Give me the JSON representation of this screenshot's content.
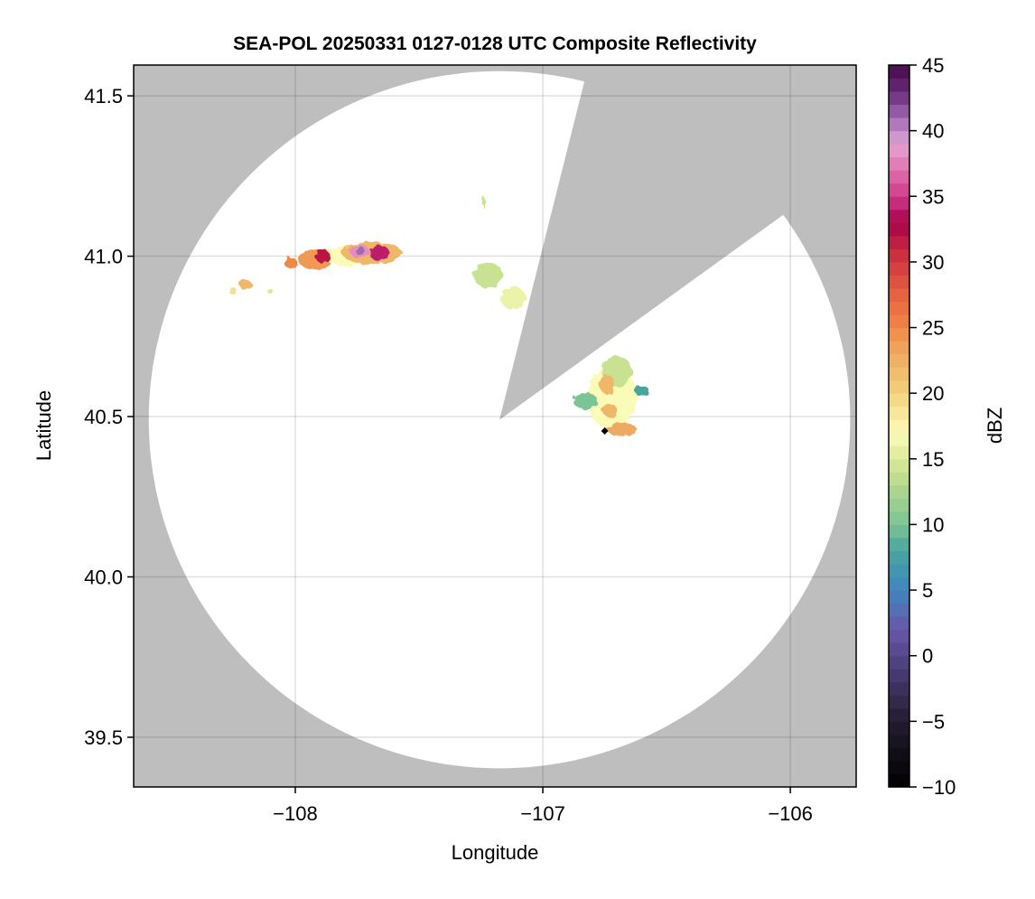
{
  "chart_data": {
    "type": "heatmap",
    "title": "SEA-POL 20250331 0127-0128 UTC Composite Reflectivity",
    "xlabel": "Longitude",
    "ylabel": "Latitude",
    "xlim": [
      -108.653,
      -105.734
    ],
    "ylim": [
      39.345,
      41.596
    ],
    "xticks": [
      -108,
      -107,
      -106
    ],
    "xtick_labels": [
      "−108",
      "−107",
      "−106"
    ],
    "yticks": [
      39.5,
      40.0,
      40.5,
      41.0,
      41.5
    ],
    "ytick_labels": [
      "39.5",
      "40.0",
      "40.5",
      "41.0",
      "41.5"
    ],
    "grid": true,
    "background_color": "#bebebe",
    "radar": {
      "lon": -107.175,
      "lat": 40.49,
      "range_lon_deg": 1.417,
      "range_lat_deg": 1.087,
      "blocked_sector_azimuth_deg": [
        14,
        54
      ]
    },
    "site_marker": {
      "lon": -106.75,
      "lat": 40.455,
      "symbol": "diamond",
      "color": "#000000"
    },
    "colorbar": {
      "label": "dBZ",
      "range": [
        -10,
        45
      ],
      "step": 1,
      "ticks": [
        -10,
        -5,
        0,
        5,
        10,
        15,
        20,
        25,
        30,
        35,
        40,
        45
      ],
      "tick_labels": [
        "−10",
        "−5",
        "0",
        "5",
        "10",
        "15",
        "20",
        "25",
        "30",
        "35",
        "40",
        "45"
      ],
      "color_stops": [
        [
          -10,
          "#000000"
        ],
        [
          -5,
          "#231c30"
        ],
        [
          0,
          "#54468a"
        ],
        [
          2,
          "#6a56a8"
        ],
        [
          5,
          "#3f86c0"
        ],
        [
          8,
          "#47a59e"
        ],
        [
          10,
          "#7cc495"
        ],
        [
          13,
          "#b4d88c"
        ],
        [
          15,
          "#dbea98"
        ],
        [
          17,
          "#fbfbb8"
        ],
        [
          20,
          "#f2d27c"
        ],
        [
          23,
          "#eeaa60"
        ],
        [
          25,
          "#f08848"
        ],
        [
          28,
          "#e55a40"
        ],
        [
          31,
          "#c7283f"
        ],
        [
          33,
          "#a8004a"
        ],
        [
          35,
          "#d03a8a"
        ],
        [
          38,
          "#e58cc0"
        ],
        [
          39,
          "#e2a4d4"
        ],
        [
          41,
          "#9f6ab4"
        ],
        [
          43,
          "#6a2a78"
        ],
        [
          45,
          "#460a4a"
        ]
      ]
    },
    "echo_cells": [
      {
        "lon": -107.92,
        "lat": 40.99,
        "rlon": 0.07,
        "rlat": 0.03,
        "dbz": 24
      },
      {
        "lon": -107.8,
        "lat": 41.0,
        "rlon": 0.08,
        "rlat": 0.03,
        "dbz": 17
      },
      {
        "lon": -107.89,
        "lat": 41.0,
        "rlon": 0.03,
        "rlat": 0.02,
        "dbz": 32
      },
      {
        "lon": -107.69,
        "lat": 41.01,
        "rlon": 0.12,
        "rlat": 0.035,
        "dbz": 22
      },
      {
        "lon": -107.74,
        "lat": 41.015,
        "rlon": 0.04,
        "rlat": 0.02,
        "dbz": 38
      },
      {
        "lon": -107.74,
        "lat": 41.018,
        "rlon": 0.02,
        "rlat": 0.012,
        "dbz": 41
      },
      {
        "lon": -107.66,
        "lat": 41.01,
        "rlon": 0.04,
        "rlat": 0.025,
        "dbz": 34
      },
      {
        "lon": -108.02,
        "lat": 40.98,
        "rlon": 0.025,
        "rlat": 0.018,
        "dbz": 25
      },
      {
        "lon": -108.2,
        "lat": 40.91,
        "rlon": 0.025,
        "rlat": 0.015,
        "dbz": 22
      },
      {
        "lon": -108.25,
        "lat": 40.89,
        "rlon": 0.015,
        "rlat": 0.012,
        "dbz": 19
      },
      {
        "lon": -108.1,
        "lat": 40.89,
        "rlon": 0.01,
        "rlat": 0.008,
        "dbz": 15
      },
      {
        "lon": -107.24,
        "lat": 41.17,
        "rlon": 0.006,
        "rlat": 0.018,
        "dbz": 14
      },
      {
        "lon": -107.22,
        "lat": 40.94,
        "rlon": 0.06,
        "rlat": 0.04,
        "dbz": 14
      },
      {
        "lon": -107.12,
        "lat": 40.87,
        "rlon": 0.05,
        "rlat": 0.035,
        "dbz": 16
      },
      {
        "lon": -106.72,
        "lat": 40.56,
        "rlon": 0.1,
        "rlat": 0.1,
        "dbz": 17
      },
      {
        "lon": -106.7,
        "lat": 40.64,
        "rlon": 0.06,
        "rlat": 0.05,
        "dbz": 14
      },
      {
        "lon": -106.83,
        "lat": 40.55,
        "rlon": 0.05,
        "rlat": 0.025,
        "dbz": 10
      },
      {
        "lon": -106.6,
        "lat": 40.58,
        "rlon": 0.03,
        "rlat": 0.015,
        "dbz": 8
      },
      {
        "lon": -106.74,
        "lat": 40.6,
        "rlon": 0.03,
        "rlat": 0.03,
        "dbz": 22
      },
      {
        "lon": -106.68,
        "lat": 40.46,
        "rlon": 0.06,
        "rlat": 0.02,
        "dbz": 23
      },
      {
        "lon": -106.73,
        "lat": 40.52,
        "rlon": 0.03,
        "rlat": 0.02,
        "dbz": 22
      }
    ]
  }
}
